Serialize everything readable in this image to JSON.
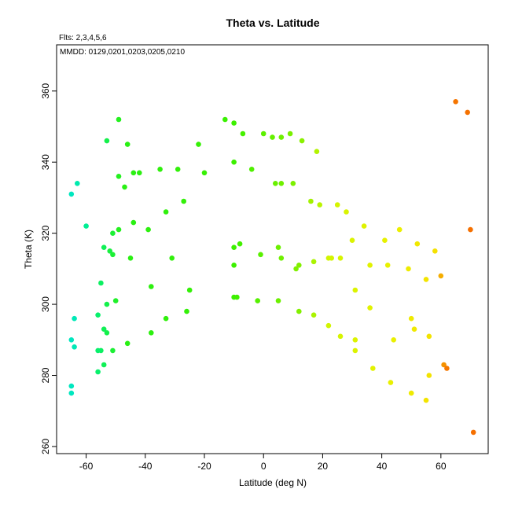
{
  "chart_data": {
    "type": "scatter",
    "title": "Theta vs. Latitude",
    "annotations": [
      "Flts: 2,3,4,5,6",
      "MMDD: 0129,0201,0203,0205,0210"
    ],
    "xlabel": "Latitude (deg N)",
    "ylabel": "Theta (K)",
    "xlim": [
      -70,
      76
    ],
    "ylim": [
      258,
      373
    ],
    "xticks": [
      -60,
      -40,
      -20,
      0,
      20,
      40,
      60
    ],
    "yticks": [
      260,
      280,
      300,
      320,
      340,
      360
    ],
    "grid": false,
    "color_scale": "point color varies with latitude: cyan (south) - green - yellow - orange (north)",
    "points": [
      {
        "x": -63,
        "y": 334
      },
      {
        "x": -65,
        "y": 331
      },
      {
        "x": -60,
        "y": 322
      },
      {
        "x": -64,
        "y": 296
      },
      {
        "x": -65,
        "y": 290
      },
      {
        "x": -64,
        "y": 288
      },
      {
        "x": -65,
        "y": 277
      },
      {
        "x": -65,
        "y": 275
      },
      {
        "x": -53,
        "y": 346
      },
      {
        "x": -49,
        "y": 352
      },
      {
        "x": -46,
        "y": 345
      },
      {
        "x": -49,
        "y": 336
      },
      {
        "x": -47,
        "y": 333
      },
      {
        "x": -44,
        "y": 337
      },
      {
        "x": -42,
        "y": 337
      },
      {
        "x": -35,
        "y": 338
      },
      {
        "x": -29,
        "y": 338
      },
      {
        "x": -22,
        "y": 345
      },
      {
        "x": -20,
        "y": 337
      },
      {
        "x": -27,
        "y": 329
      },
      {
        "x": -33,
        "y": 326
      },
      {
        "x": -44,
        "y": 323
      },
      {
        "x": -39,
        "y": 321
      },
      {
        "x": -49,
        "y": 321
      },
      {
        "x": -51,
        "y": 320
      },
      {
        "x": -54,
        "y": 316
      },
      {
        "x": -52,
        "y": 315
      },
      {
        "x": -51,
        "y": 314
      },
      {
        "x": -45,
        "y": 313
      },
      {
        "x": -31,
        "y": 313
      },
      {
        "x": -55,
        "y": 306
      },
      {
        "x": -38,
        "y": 305
      },
      {
        "x": -25,
        "y": 304
      },
      {
        "x": -50,
        "y": 301
      },
      {
        "x": -53,
        "y": 300
      },
      {
        "x": -56,
        "y": 297
      },
      {
        "x": -33,
        "y": 296
      },
      {
        "x": -26,
        "y": 298
      },
      {
        "x": -54,
        "y": 293
      },
      {
        "x": -53,
        "y": 292
      },
      {
        "x": -38,
        "y": 292
      },
      {
        "x": -46,
        "y": 289
      },
      {
        "x": -55,
        "y": 287
      },
      {
        "x": -56,
        "y": 287
      },
      {
        "x": -51,
        "y": 287
      },
      {
        "x": -54,
        "y": 283
      },
      {
        "x": -56,
        "y": 281
      },
      {
        "x": -13,
        "y": 352
      },
      {
        "x": -10,
        "y": 351
      },
      {
        "x": -7,
        "y": 348
      },
      {
        "x": 0,
        "y": 348
      },
      {
        "x": 3,
        "y": 347
      },
      {
        "x": 6,
        "y": 347
      },
      {
        "x": 9,
        "y": 348
      },
      {
        "x": 13,
        "y": 346
      },
      {
        "x": 18,
        "y": 343
      },
      {
        "x": -10,
        "y": 340
      },
      {
        "x": -4,
        "y": 338
      },
      {
        "x": 4,
        "y": 334
      },
      {
        "x": 6,
        "y": 334
      },
      {
        "x": 10,
        "y": 334
      },
      {
        "x": 16,
        "y": 329
      },
      {
        "x": 19,
        "y": 328
      },
      {
        "x": 25,
        "y": 328
      },
      {
        "x": 28,
        "y": 326
      },
      {
        "x": -8,
        "y": 317
      },
      {
        "x": -10,
        "y": 316
      },
      {
        "x": 5,
        "y": 316
      },
      {
        "x": -1,
        "y": 314
      },
      {
        "x": 6,
        "y": 313
      },
      {
        "x": -10,
        "y": 311
      },
      {
        "x": 11,
        "y": 310
      },
      {
        "x": 12,
        "y": 311
      },
      {
        "x": 17,
        "y": 312
      },
      {
        "x": 22,
        "y": 313
      },
      {
        "x": 23,
        "y": 313
      },
      {
        "x": 26,
        "y": 313
      },
      {
        "x": -10,
        "y": 302
      },
      {
        "x": -9,
        "y": 302
      },
      {
        "x": -2,
        "y": 301
      },
      {
        "x": 5,
        "y": 301
      },
      {
        "x": 12,
        "y": 298
      },
      {
        "x": 17,
        "y": 297
      },
      {
        "x": 34,
        "y": 322
      },
      {
        "x": 46,
        "y": 321
      },
      {
        "x": 41,
        "y": 318
      },
      {
        "x": 30,
        "y": 318
      },
      {
        "x": 52,
        "y": 317
      },
      {
        "x": 58,
        "y": 315
      },
      {
        "x": 36,
        "y": 311
      },
      {
        "x": 42,
        "y": 311
      },
      {
        "x": 49,
        "y": 310
      },
      {
        "x": 55,
        "y": 307
      },
      {
        "x": 60,
        "y": 308
      },
      {
        "x": 31,
        "y": 304
      },
      {
        "x": 36,
        "y": 299
      },
      {
        "x": 50,
        "y": 296
      },
      {
        "x": 22,
        "y": 294
      },
      {
        "x": 51,
        "y": 293
      },
      {
        "x": 56,
        "y": 291
      },
      {
        "x": 26,
        "y": 291
      },
      {
        "x": 31,
        "y": 290
      },
      {
        "x": 44,
        "y": 290
      },
      {
        "x": 31,
        "y": 287
      },
      {
        "x": 61,
        "y": 283
      },
      {
        "x": 37,
        "y": 282
      },
      {
        "x": 56,
        "y": 280
      },
      {
        "x": 43,
        "y": 278
      },
      {
        "x": 50,
        "y": 275
      },
      {
        "x": 55,
        "y": 273
      },
      {
        "x": 65,
        "y": 357
      },
      {
        "x": 69,
        "y": 354
      },
      {
        "x": 70,
        "y": 321
      },
      {
        "x": 62,
        "y": 282
      },
      {
        "x": 71,
        "y": 264
      }
    ]
  }
}
